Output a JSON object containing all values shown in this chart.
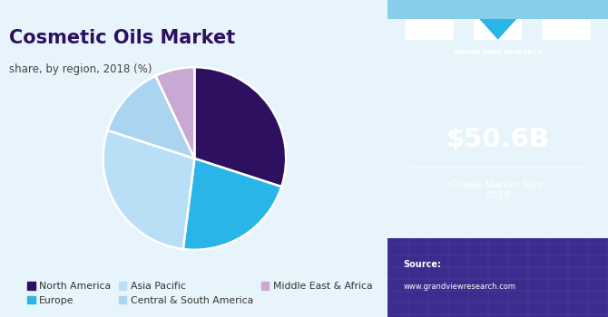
{
  "title": "Cosmetic Oils Market",
  "subtitle": "share, by region, 2018 (%)",
  "slices": [
    {
      "label": "North America",
      "value": 30,
      "color": "#2d1160"
    },
    {
      "label": "Europe",
      "value": 22,
      "color": "#29b5e8"
    },
    {
      "label": "Asia Pacific",
      "value": 28,
      "color": "#b8dff5"
    },
    {
      "label": "Central & South America",
      "value": 13,
      "color": "#aad4ef"
    },
    {
      "label": "Middle East & Africa",
      "value": 7,
      "color": "#c9a8d4"
    }
  ],
  "start_angle": 90,
  "bg_color": "#e8f4fb",
  "right_bg_color": "#2e1a6e",
  "right_text_large": "$50.6B",
  "right_text_small": "Global Market Size,\n2018",
  "source_text": "Source:\nwww.grandviewresearch.com",
  "title_color": "#2d1160",
  "subtitle_color": "#444444",
  "legend_text_color": "#333333",
  "top_bar_color": "#87ceeb",
  "grid_bottom_color": "#3d2b8e",
  "grid_line_color": "#5566bb"
}
